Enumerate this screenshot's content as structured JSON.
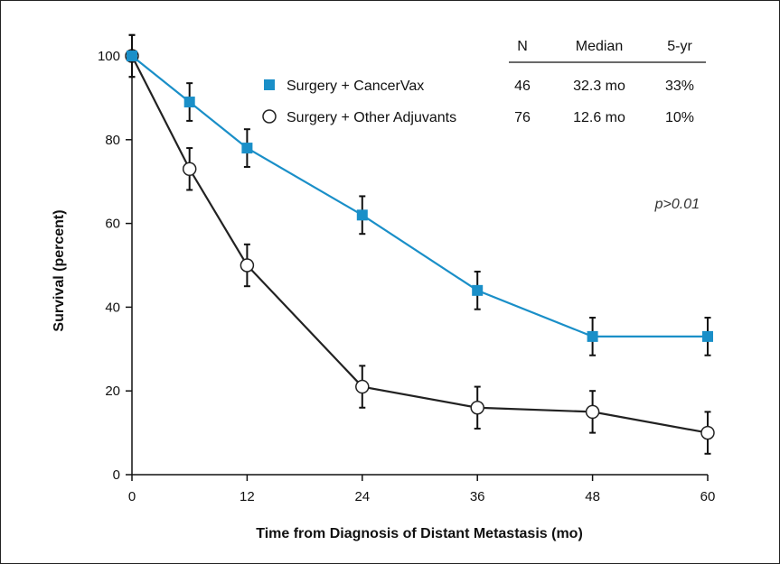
{
  "chart_data": {
    "type": "line",
    "xlabel": "Time from Diagnosis of Distant Metastasis (mo)",
    "ylabel": "Survival (percent)",
    "xlim": [
      0,
      60
    ],
    "ylim": [
      0,
      100
    ],
    "x_ticks": [
      0,
      12,
      24,
      36,
      48,
      60
    ],
    "y_ticks": [
      0,
      20,
      40,
      60,
      80,
      100
    ],
    "grid": false,
    "legend_position": "top",
    "series": [
      {
        "name": "Surgery + CancerVax",
        "color": "#1a8fc8",
        "marker": "square-filled",
        "x": [
          0,
          6,
          12,
          24,
          36,
          48,
          60
        ],
        "y": [
          100,
          89,
          78,
          62,
          44,
          33,
          33
        ],
        "err": [
          5,
          4.5,
          4.5,
          4.5,
          4.5,
          4.5,
          4.5
        ]
      },
      {
        "name": "Surgery + Other Adjuvants",
        "color": "#222222",
        "marker": "circle-open",
        "x": [
          0,
          6,
          12,
          24,
          36,
          48,
          60
        ],
        "y": [
          100,
          73,
          50,
          21,
          16,
          15,
          10
        ],
        "err": [
          5,
          5,
          5,
          5,
          5,
          5,
          5
        ]
      }
    ],
    "legend_table": {
      "headers": [
        "N",
        "Median",
        "5-yr"
      ],
      "rows": [
        [
          "46",
          "32.3 mo",
          "33%"
        ],
        [
          "76",
          "12.6 mo",
          "10%"
        ]
      ]
    },
    "annotation": "p>0.01"
  }
}
